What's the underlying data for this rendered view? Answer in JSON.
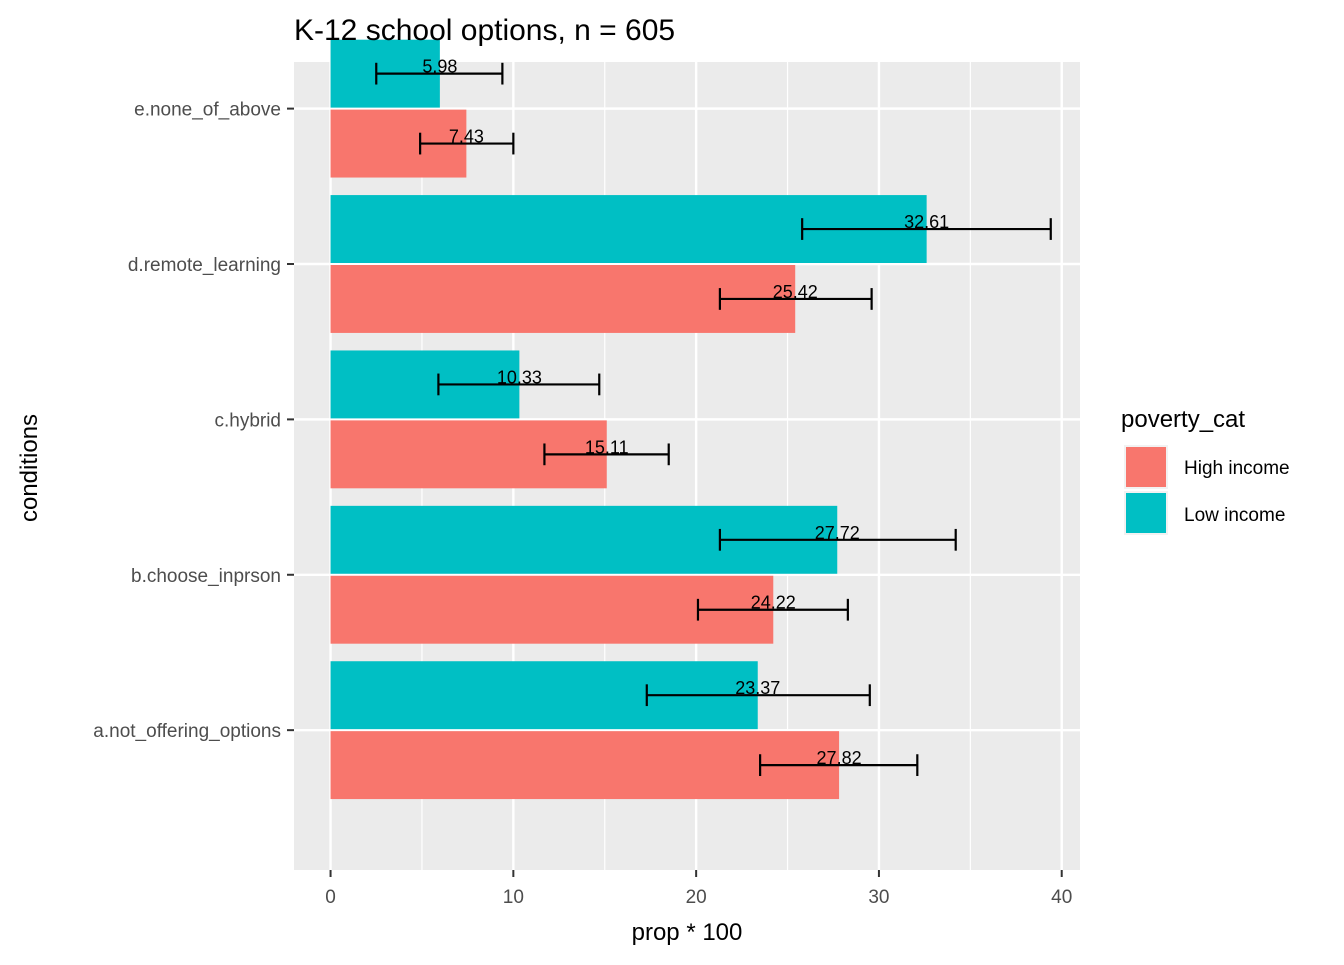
{
  "chart_data": {
    "type": "bar",
    "orientation": "horizontal",
    "title": "K-12 school options, n = 605",
    "xlabel": "prop * 100",
    "ylabel": "conditions",
    "xlim": [
      -2,
      41
    ],
    "xticks": [
      0,
      10,
      20,
      30,
      40
    ],
    "categories": [
      "a.not_offering_options",
      "b.choose_inprson",
      "c.hybrid",
      "d.remote_learning",
      "e.none_of_above"
    ],
    "series": [
      {
        "name": "High income",
        "color": "#F8766D",
        "values": [
          27.82,
          24.22,
          15.11,
          25.42,
          7.43
        ],
        "labels": [
          "27.82",
          "24.22",
          "15.11",
          "25.42",
          "7.43"
        ],
        "error_low": [
          23.5,
          20.1,
          11.7,
          21.3,
          4.9
        ],
        "error_high": [
          32.1,
          28.3,
          18.5,
          29.6,
          10.0
        ]
      },
      {
        "name": "Low income",
        "color": "#00BFC4",
        "values": [
          23.37,
          27.72,
          10.33,
          32.61,
          5.98
        ],
        "labels": [
          "23.37",
          "27.72",
          "10.33",
          "32.61",
          "5.98"
        ],
        "error_low": [
          17.3,
          21.3,
          5.9,
          25.8,
          2.5
        ],
        "error_high": [
          29.5,
          34.2,
          14.7,
          39.4,
          9.4
        ]
      }
    ],
    "legend": {
      "title": "poverty_cat",
      "position": "right"
    },
    "grid": true,
    "panel_background": "#EBEBEB"
  }
}
